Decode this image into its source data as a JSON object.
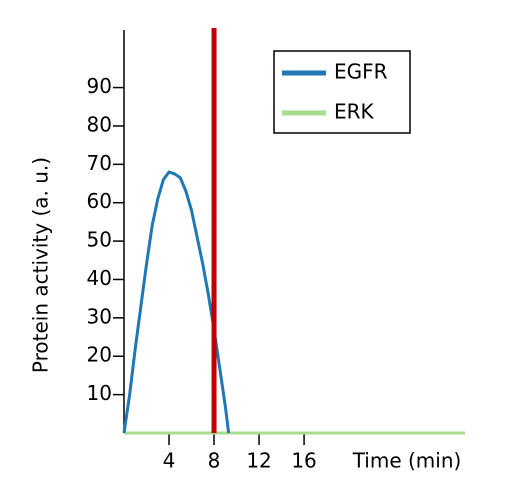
{
  "chart_data": {
    "type": "line",
    "xlabel": "Time (min)",
    "ylabel": "Protein activity (a. u.)",
    "xlim": [
      0,
      30.3
    ],
    "ylim": [
      0,
      105
    ],
    "xticks": [
      4,
      8,
      12,
      16
    ],
    "yticks": [
      10,
      20,
      30,
      40,
      50,
      60,
      70,
      80,
      90
    ],
    "legend": "upper right",
    "series": [
      {
        "name": "EGFR",
        "color": "#1f77b4",
        "x": [
          0,
          0.5,
          1,
          1.5,
          2,
          2.5,
          3,
          3.5,
          4,
          4.5,
          5,
          5.5,
          6,
          6.5,
          7,
          7.5,
          8,
          8.5,
          9,
          9.3
        ],
        "values": [
          0,
          10,
          22,
          33,
          44,
          54,
          61,
          66,
          68,
          67.5,
          66.5,
          63,
          58,
          51,
          44,
          36,
          27,
          17,
          7,
          0
        ]
      },
      {
        "name": "ERK",
        "color": "#a6dc8a",
        "x": [
          0,
          30.3
        ],
        "values": [
          0,
          0
        ]
      }
    ],
    "vlines": [
      {
        "x": 8,
        "color": "#c00000"
      }
    ]
  }
}
